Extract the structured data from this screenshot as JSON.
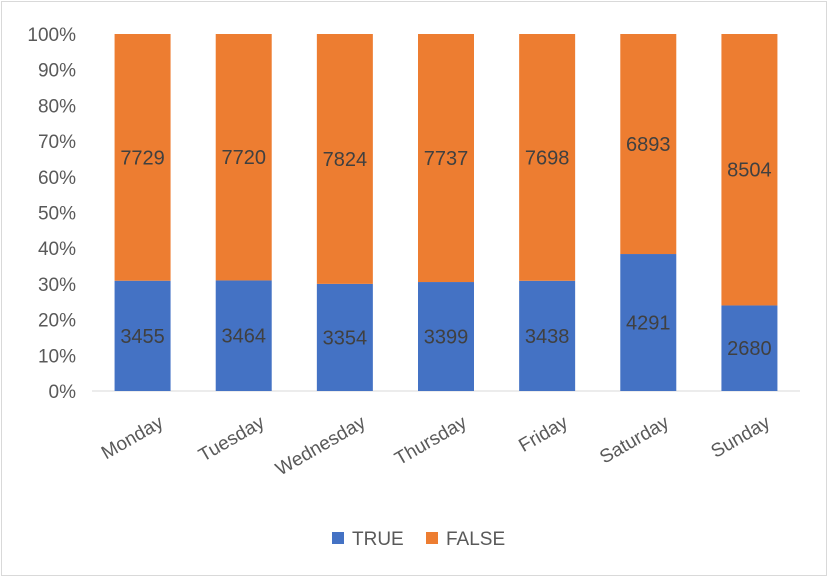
{
  "chart_data": {
    "type": "bar",
    "stacked": "percent",
    "categories": [
      "Monday",
      "Tuesday",
      "Wednesday",
      "Thursday",
      "Friday",
      "Saturday",
      "Sunday"
    ],
    "series": [
      {
        "name": "TRUE",
        "color": "#4472c4",
        "values": [
          3455,
          3464,
          3354,
          3399,
          3438,
          4291,
          2680
        ]
      },
      {
        "name": "FALSE",
        "color": "#ed7d31",
        "values": [
          7729,
          7720,
          7824,
          7737,
          7698,
          6893,
          8504
        ]
      }
    ],
    "yticks": [
      "0%",
      "10%",
      "20%",
      "30%",
      "40%",
      "50%",
      "60%",
      "70%",
      "80%",
      "90%",
      "100%"
    ],
    "ylim": [
      0,
      100
    ],
    "grid": false,
    "legend": "bottom"
  }
}
